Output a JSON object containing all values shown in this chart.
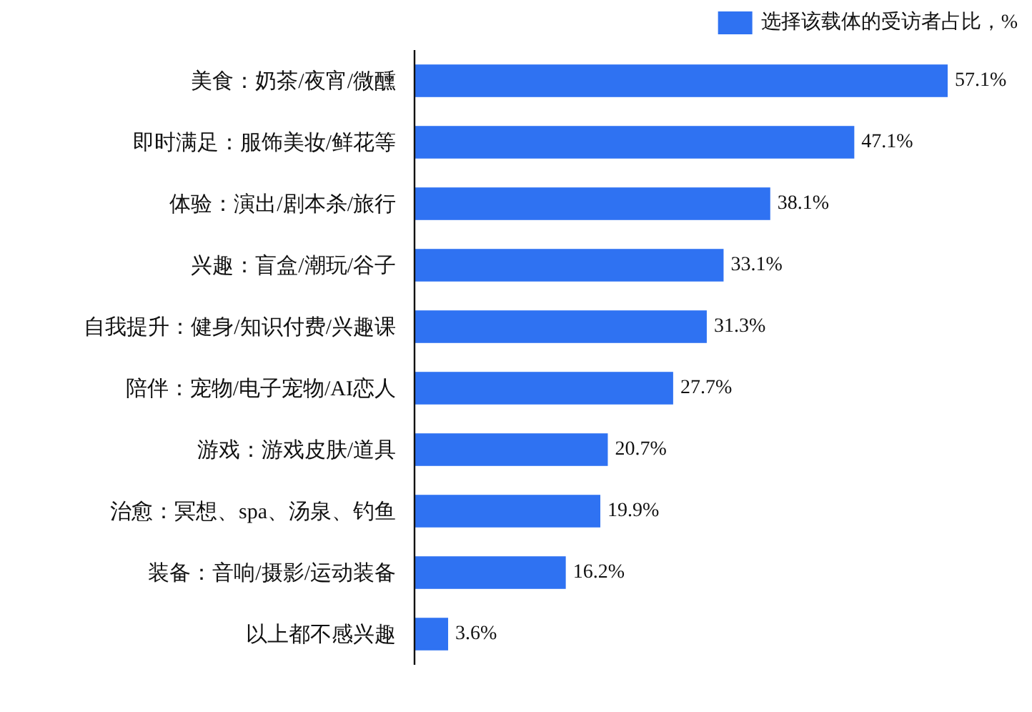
{
  "chart_data": {
    "type": "bar",
    "orientation": "horizontal",
    "categories": [
      "美食：奶茶/夜宵/微醺",
      "即时满足：服饰美妆/鲜花等",
      "体验：演出/剧本杀/旅行",
      "兴趣：盲盒/潮玩/谷子",
      "自我提升：健身/知识付费/兴趣课",
      "陪伴：宠物/电子宠物/AI恋人",
      "游戏：游戏皮肤/道具",
      "治愈：冥想、spa、汤泉、钓鱼",
      "装备：音响/摄影/运动装备",
      "以上都不感兴趣"
    ],
    "series": [
      {
        "name": "选择该载体的受访者占比，%",
        "color": "#2f72f2",
        "values": [
          57.1,
          47.1,
          38.1,
          33.1,
          31.3,
          27.7,
          20.7,
          19.9,
          16.2,
          3.6
        ],
        "value_labels": [
          "57.1%",
          "47.1%",
          "38.1%",
          "33.1%",
          "31.3%",
          "27.7%",
          "20.7%",
          "19.9%",
          "16.2%",
          "3.6%"
        ]
      }
    ],
    "legend": "top right",
    "grid": false
  }
}
